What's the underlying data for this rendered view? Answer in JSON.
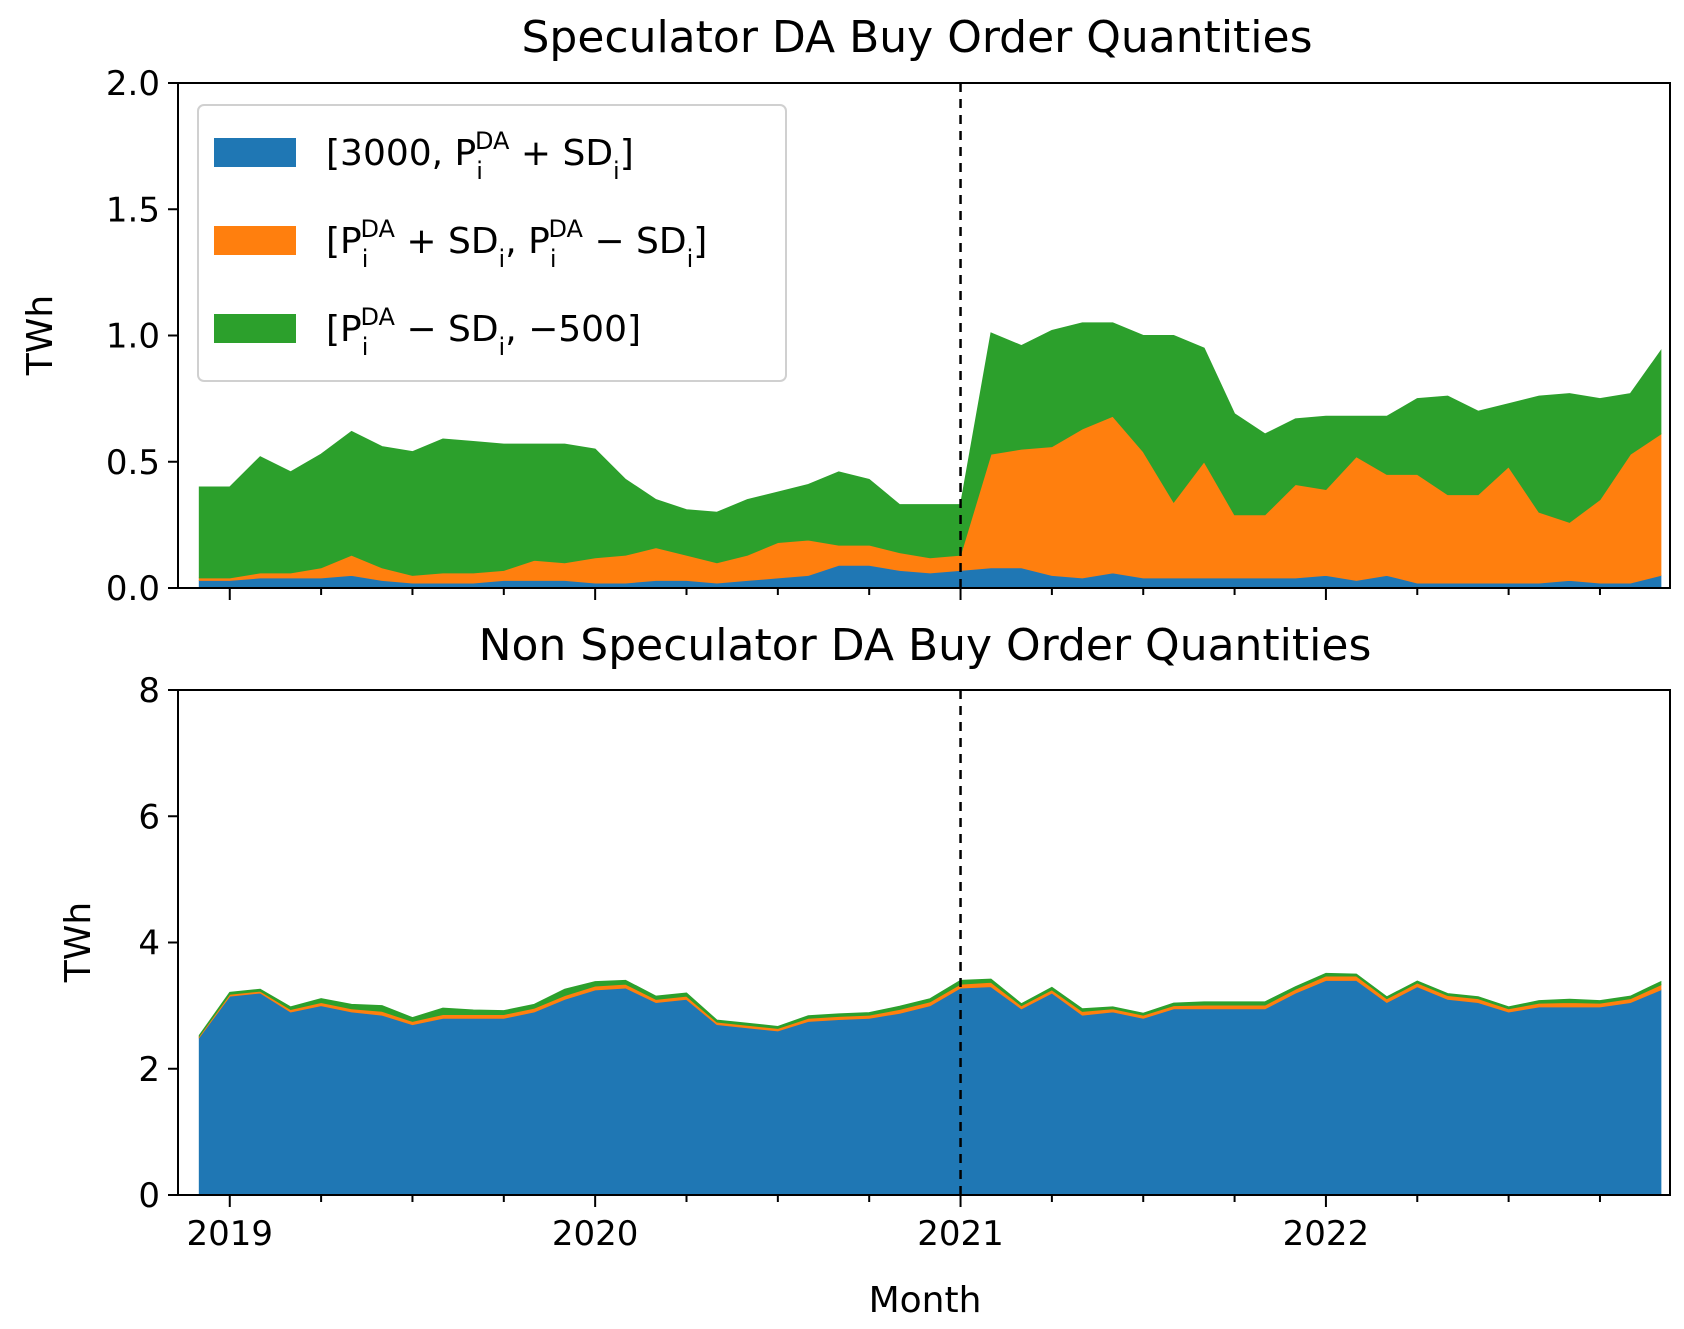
{
  "chart_data": [
    {
      "type": "area",
      "stacked": true,
      "title": "Speculator DA Buy Order Quantities",
      "xlabel": "",
      "ylabel": "TWh",
      "ylim": [
        0,
        2.0
      ],
      "yticks": [
        0.0,
        0.5,
        1.0,
        1.5,
        2.0
      ],
      "ytick_labels": [
        "0.0",
        "0.5",
        "1.0",
        "1.5",
        "2.0"
      ],
      "xlim": [
        -0.7,
        48.3
      ],
      "x_start": "2018-11",
      "x": [
        0,
        1,
        2,
        3,
        4,
        5,
        6,
        7,
        8,
        9,
        10,
        11,
        12,
        13,
        14,
        15,
        16,
        17,
        18,
        19,
        20,
        21,
        22,
        23,
        24,
        25,
        26,
        27,
        28,
        29,
        30,
        31,
        32,
        33,
        34,
        35,
        36,
        37,
        38,
        39,
        40,
        41,
        42,
        43,
        44,
        45,
        46,
        47,
        48
      ],
      "vline_x": 25,
      "legend_position": "upper-left",
      "series": [
        {
          "name": "[3000, P_i^DA + SD_i]",
          "color": "#1f77b4",
          "values": [
            0.03,
            0.03,
            0.04,
            0.04,
            0.04,
            0.05,
            0.03,
            0.02,
            0.02,
            0.02,
            0.03,
            0.03,
            0.03,
            0.02,
            0.02,
            0.03,
            0.03,
            0.02,
            0.03,
            0.04,
            0.05,
            0.09,
            0.09,
            0.07,
            0.06,
            0.07,
            0.08,
            0.08,
            0.05,
            0.04,
            0.06,
            0.04,
            0.04,
            0.04,
            0.04,
            0.04,
            0.04,
            0.05,
            0.03,
            0.05,
            0.02,
            0.02,
            0.02,
            0.02,
            0.02,
            0.03,
            0.02,
            0.02,
            0.05
          ]
        },
        {
          "name": "[P_i^DA + SD_i, P_i^DA − SD_i]",
          "color": "#ff7f0e",
          "values": [
            0.01,
            0.01,
            0.02,
            0.02,
            0.04,
            0.08,
            0.05,
            0.03,
            0.04,
            0.04,
            0.04,
            0.08,
            0.07,
            0.1,
            0.11,
            0.13,
            0.1,
            0.08,
            0.1,
            0.14,
            0.14,
            0.08,
            0.08,
            0.07,
            0.06,
            0.06,
            0.45,
            0.47,
            0.51,
            0.59,
            0.62,
            0.5,
            0.3,
            0.46,
            0.25,
            0.25,
            0.37,
            0.34,
            0.49,
            0.4,
            0.43,
            0.35,
            0.35,
            0.46,
            0.28,
            0.23,
            0.33,
            0.51,
            0.56
          ]
        },
        {
          "name": "[P_i^DA − SD_i, −500]",
          "color": "#2ca02c",
          "values": [
            0.36,
            0.36,
            0.46,
            0.4,
            0.45,
            0.49,
            0.48,
            0.49,
            0.53,
            0.52,
            0.5,
            0.46,
            0.47,
            0.43,
            0.3,
            0.19,
            0.18,
            0.2,
            0.22,
            0.2,
            0.22,
            0.29,
            0.26,
            0.19,
            0.21,
            0.2,
            0.48,
            0.41,
            0.46,
            0.42,
            0.37,
            0.46,
            0.66,
            0.45,
            0.4,
            0.32,
            0.26,
            0.29,
            0.16,
            0.23,
            0.3,
            0.39,
            0.33,
            0.25,
            0.46,
            0.51,
            0.4,
            0.24,
            0.33
          ]
        }
      ]
    },
    {
      "type": "area",
      "stacked": true,
      "title": "Non Speculator DA Buy Order Quantities",
      "xlabel": "Month",
      "ylabel": "TWh",
      "ylim": [
        0,
        8
      ],
      "yticks": [
        0,
        2,
        4,
        6,
        8
      ],
      "ytick_labels": [
        "0",
        "2",
        "4",
        "6",
        "8"
      ],
      "xlim": [
        -0.7,
        48.3
      ],
      "x_start": "2018-11",
      "x": [
        0,
        1,
        2,
        3,
        4,
        5,
        6,
        7,
        8,
        9,
        10,
        11,
        12,
        13,
        14,
        15,
        16,
        17,
        18,
        19,
        20,
        21,
        22,
        23,
        24,
        25,
        26,
        27,
        28,
        29,
        30,
        31,
        32,
        33,
        34,
        35,
        36,
        37,
        38,
        39,
        40,
        41,
        42,
        43,
        44,
        45,
        46,
        47,
        48
      ],
      "xticks": [
        1,
        13,
        25,
        37
      ],
      "xtick_labels": [
        "2019",
        "2020",
        "2021",
        "2022"
      ],
      "vline_x": 25,
      "series": [
        {
          "name": "[3000, P_i^DA + SD_i]",
          "color": "#1f77b4",
          "values": [
            2.5,
            3.15,
            3.2,
            2.9,
            3.0,
            2.9,
            2.85,
            2.7,
            2.8,
            2.8,
            2.8,
            2.9,
            3.1,
            3.25,
            3.28,
            3.05,
            3.1,
            2.7,
            2.65,
            2.6,
            2.75,
            2.78,
            2.8,
            2.88,
            3.0,
            3.28,
            3.3,
            2.95,
            3.2,
            2.85,
            2.9,
            2.8,
            2.95,
            2.95,
            2.95,
            2.95,
            3.2,
            3.4,
            3.4,
            3.05,
            3.3,
            3.1,
            3.05,
            2.9,
            2.98,
            2.98,
            2.98,
            3.05,
            3.25
          ]
        },
        {
          "name": "[P_i^DA + SD_i, P_i^DA − SD_i]",
          "color": "#ff7f0e",
          "values": [
            0.02,
            0.03,
            0.03,
            0.04,
            0.05,
            0.05,
            0.06,
            0.05,
            0.06,
            0.06,
            0.06,
            0.06,
            0.06,
            0.06,
            0.06,
            0.05,
            0.05,
            0.04,
            0.04,
            0.04,
            0.05,
            0.05,
            0.05,
            0.06,
            0.06,
            0.06,
            0.07,
            0.05,
            0.05,
            0.06,
            0.05,
            0.05,
            0.05,
            0.06,
            0.06,
            0.06,
            0.06,
            0.07,
            0.07,
            0.06,
            0.06,
            0.06,
            0.06,
            0.05,
            0.06,
            0.07,
            0.06,
            0.06,
            0.08
          ]
        },
        {
          "name": "[P_i^DA − SD_i, −500]",
          "color": "#2ca02c",
          "values": [
            0.01,
            0.03,
            0.03,
            0.04,
            0.06,
            0.07,
            0.09,
            0.06,
            0.1,
            0.07,
            0.06,
            0.06,
            0.1,
            0.07,
            0.06,
            0.05,
            0.05,
            0.03,
            0.03,
            0.03,
            0.04,
            0.04,
            0.04,
            0.05,
            0.05,
            0.06,
            0.05,
            0.03,
            0.04,
            0.04,
            0.03,
            0.03,
            0.04,
            0.05,
            0.05,
            0.05,
            0.04,
            0.04,
            0.03,
            0.03,
            0.03,
            0.03,
            0.03,
            0.03,
            0.04,
            0.05,
            0.04,
            0.04,
            0.05
          ]
        }
      ]
    }
  ],
  "legend": {
    "entries": [
      {
        "color": "#1f77b4",
        "open": "[3000, P",
        "sub1": "i",
        "sup1": "DA",
        "mid1": " + SD",
        "sub2": "i",
        "close": "]"
      },
      {
        "color": "#ff7f0e",
        "open": "[P",
        "sub1": "i",
        "sup1": "DA",
        "mid1": " + SD",
        "sub2": "i",
        "mid2": ", P",
        "sub3": "i",
        "sup3": "DA",
        "mid3": " − SD",
        "sub4": "i",
        "close": "]"
      },
      {
        "color": "#2ca02c",
        "open": "[P",
        "sub1": "i",
        "sup1": "DA",
        "mid1": " − SD",
        "sub2": "i",
        "close": ", −500]"
      }
    ]
  }
}
